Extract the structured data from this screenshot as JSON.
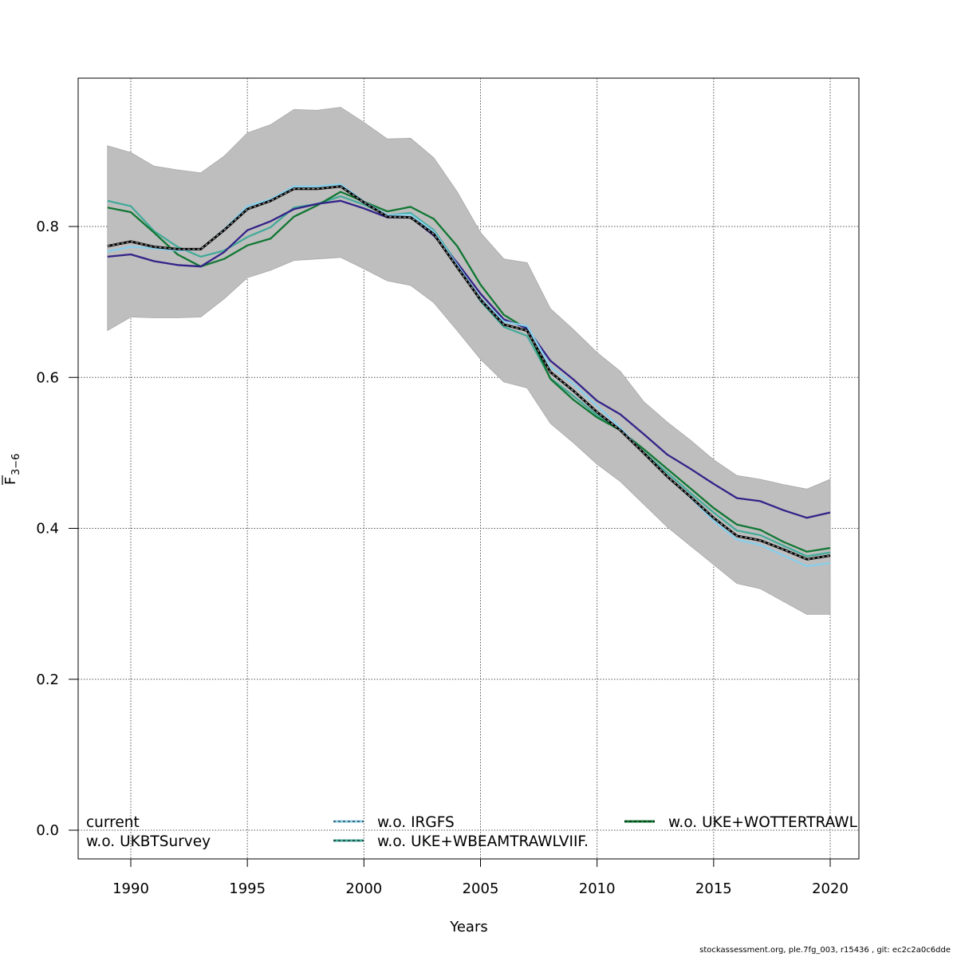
{
  "chart_data": {
    "type": "line",
    "title": "",
    "xlabel": "Years",
    "ylabel": "F̅ 3–6",
    "ylabel_main": "F",
    "ylabel_sub": "3−6",
    "xlim": [
      1988,
      2021
    ],
    "ylim": [
      -0.04,
      1.0
    ],
    "grid": true,
    "x_ticks": [
      1990,
      1995,
      2000,
      2005,
      2010,
      2015,
      2020
    ],
    "x_tick_labels": [
      "1990",
      "1995",
      "2000",
      "2005",
      "2010",
      "2015",
      "2020"
    ],
    "y_ticks": [
      0.0,
      0.2,
      0.4,
      0.6,
      0.8
    ],
    "y_tick_labels": [
      "0.0",
      "0.2",
      "0.4",
      "0.6",
      "0.8"
    ],
    "legend_position": "bottom",
    "x": [
      1989,
      1990,
      1991,
      1992,
      1993,
      1994,
      1995,
      1996,
      1997,
      1998,
      1999,
      2000,
      2001,
      2002,
      2003,
      2004,
      2005,
      2006,
      2007,
      2008,
      2009,
      2010,
      2011,
      2012,
      2013,
      2014,
      2015,
      2016,
      2017,
      2018,
      2019,
      2020
    ],
    "confidence_band": {
      "name": "current 95% CI",
      "color": "#bebebe",
      "upper": [
        0.907,
        0.898,
        0.88,
        0.875,
        0.871,
        0.893,
        0.924,
        0.935,
        0.955,
        0.954,
        0.958,
        0.938,
        0.916,
        0.917,
        0.891,
        0.846,
        0.792,
        0.757,
        0.752,
        0.691,
        0.663,
        0.633,
        0.608,
        0.568,
        0.541,
        0.517,
        0.491,
        0.47,
        0.465,
        0.458,
        0.452,
        0.465
      ],
      "lower": [
        0.662,
        0.68,
        0.679,
        0.679,
        0.68,
        0.704,
        0.732,
        0.742,
        0.755,
        0.757,
        0.759,
        0.744,
        0.728,
        0.722,
        0.699,
        0.662,
        0.624,
        0.594,
        0.586,
        0.539,
        0.513,
        0.485,
        0.462,
        0.432,
        0.402,
        0.377,
        0.352,
        0.327,
        0.32,
        0.303,
        0.286,
        0.286
      ]
    },
    "series": [
      {
        "name": "current",
        "color": "#000000",
        "style": "solid-with-grey-dashes",
        "values": [
          0.774,
          0.78,
          0.773,
          0.77,
          0.77,
          0.795,
          0.823,
          0.834,
          0.85,
          0.85,
          0.853,
          0.832,
          0.813,
          0.812,
          0.79,
          0.746,
          0.703,
          0.67,
          0.662,
          0.607,
          0.582,
          0.554,
          0.53,
          0.5,
          0.469,
          0.442,
          0.414,
          0.39,
          0.384,
          0.372,
          0.359,
          0.364
        ]
      },
      {
        "name": "w.o. IRGFS",
        "color": "#87ceeb",
        "style": "solid",
        "values": [
          0.767,
          0.773,
          0.771,
          0.768,
          0.77,
          0.796,
          0.827,
          0.836,
          0.853,
          0.853,
          0.856,
          0.833,
          0.815,
          0.816,
          0.793,
          0.749,
          0.705,
          0.674,
          0.668,
          0.614,
          0.591,
          0.562,
          0.533,
          0.5,
          0.469,
          0.441,
          0.41,
          0.385,
          0.378,
          0.364,
          0.35,
          0.354
        ]
      },
      {
        "name": "w.o. UKE+WOTTERTRAWL",
        "color": "#117733",
        "style": "solid",
        "values": [
          0.825,
          0.819,
          0.792,
          0.763,
          0.747,
          0.757,
          0.775,
          0.784,
          0.813,
          0.828,
          0.846,
          0.833,
          0.82,
          0.826,
          0.81,
          0.774,
          0.723,
          0.683,
          0.664,
          0.598,
          0.57,
          0.547,
          0.53,
          0.505,
          0.479,
          0.453,
          0.427,
          0.405,
          0.398,
          0.382,
          0.369,
          0.374
        ]
      },
      {
        "name": "w.o. UKBTSurvey",
        "color": "#332288",
        "style": "solid",
        "values": [
          0.76,
          0.763,
          0.754,
          0.749,
          0.747,
          0.766,
          0.795,
          0.807,
          0.823,
          0.83,
          0.834,
          0.824,
          0.812,
          0.812,
          0.788,
          0.752,
          0.711,
          0.677,
          0.665,
          0.622,
          0.597,
          0.569,
          0.551,
          0.525,
          0.498,
          0.479,
          0.459,
          0.44,
          0.436,
          0.424,
          0.414,
          0.421
        ]
      },
      {
        "name": "w.o. UKE+WBEAMTRAWLVIIF.",
        "color": "#44aa99",
        "style": "solid",
        "values": [
          0.834,
          0.827,
          0.794,
          0.773,
          0.76,
          0.768,
          0.786,
          0.799,
          0.825,
          0.83,
          0.84,
          0.829,
          0.815,
          0.818,
          0.795,
          0.751,
          0.701,
          0.667,
          0.655,
          0.599,
          0.575,
          0.55,
          0.53,
          0.501,
          0.474,
          0.447,
          0.421,
          0.397,
          0.391,
          0.377,
          0.363,
          0.368
        ]
      }
    ],
    "legend": [
      {
        "label": "current",
        "color": "",
        "show_line": false
      },
      {
        "label": "w.o. UKBTSurvey",
        "color": "",
        "show_line": false
      },
      {
        "label": "w.o. IRGFS",
        "color": "#87ceeb",
        "show_line": true
      },
      {
        "label": "w.o. UKE+WBEAMTRAWLVIIF.",
        "color": "#44aa99",
        "show_line": true
      },
      {
        "label": "w.o. UKE+WOTTERTRAWL",
        "color": "#117733",
        "show_line": true
      }
    ]
  },
  "footer": "stockassessment.org, ple.7fg_003, r15436 , git: ec2c2a0c6dde"
}
